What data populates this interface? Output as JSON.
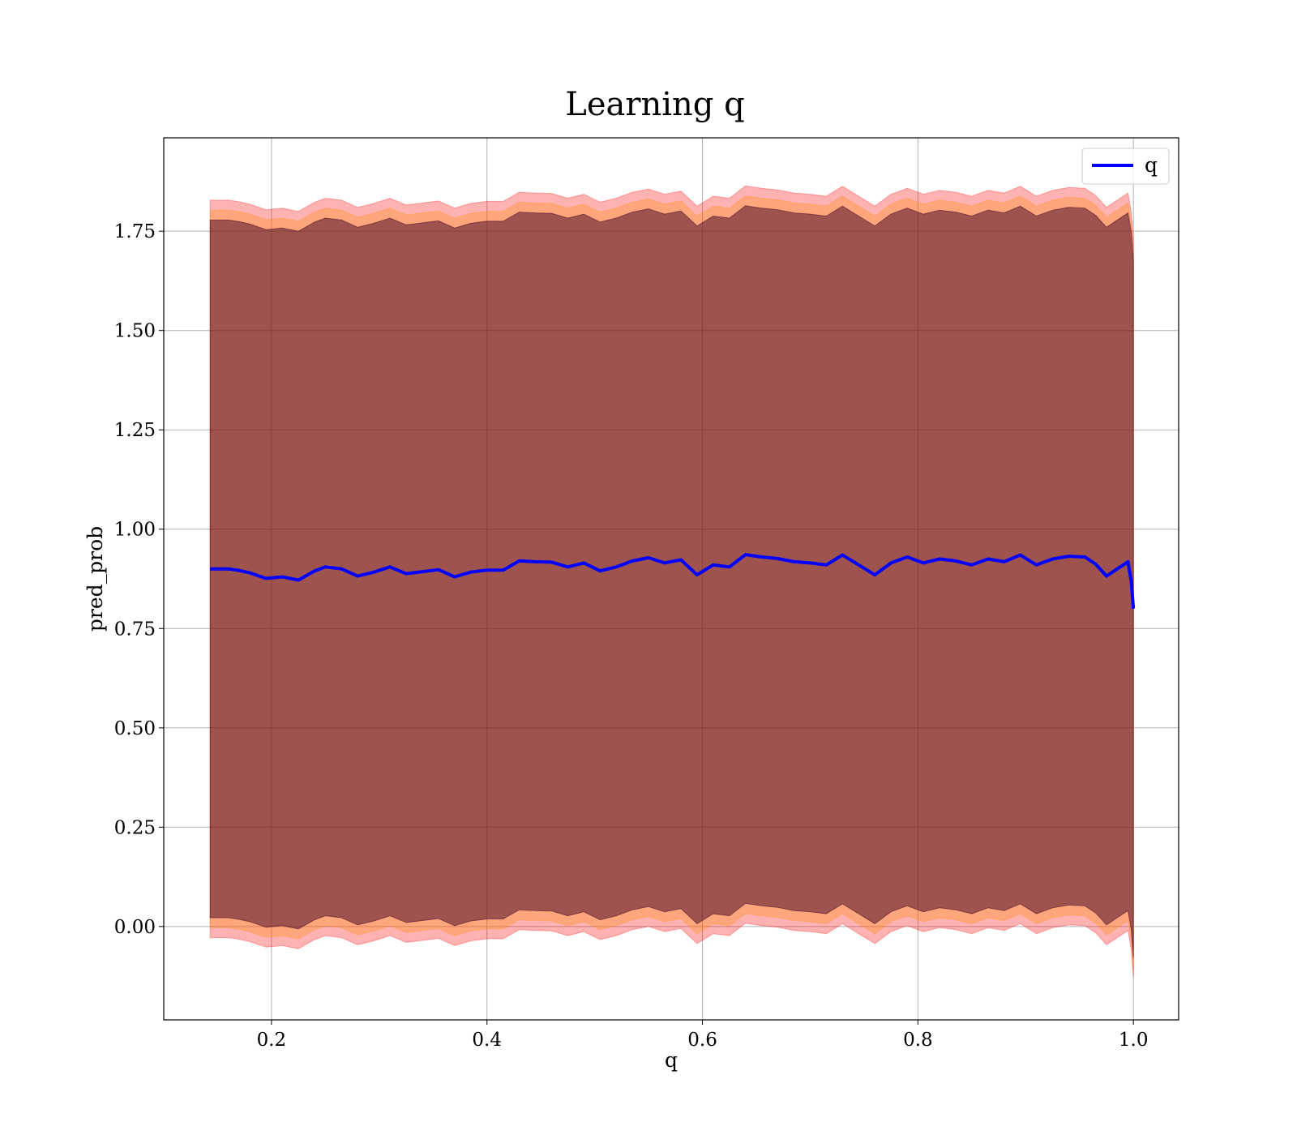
{
  "chart_data": {
    "type": "line",
    "title": "Learning q",
    "xlabel": "q",
    "ylabel": "pred_prob",
    "xlim": [
      0.1,
      1.042
    ],
    "ylim": [
      -0.235,
      1.985
    ],
    "x_ticks": [
      0.2,
      0.4,
      0.6,
      0.8,
      1.0
    ],
    "x_tick_labels": [
      "0.2",
      "0.4",
      "0.6",
      "0.8",
      "1.0"
    ],
    "y_ticks": [
      0.0,
      0.25,
      0.5,
      0.75,
      1.0,
      1.25,
      1.5,
      1.75
    ],
    "y_tick_labels": [
      "0.00",
      "0.25",
      "0.50",
      "0.75",
      "1.00",
      "1.25",
      "1.50",
      "1.75"
    ],
    "grid": true,
    "legend_position": "top-right",
    "series": [
      {
        "name": "q",
        "color": "#0000ff",
        "x": [
          0.143,
          0.16,
          0.17,
          0.18,
          0.195,
          0.21,
          0.225,
          0.24,
          0.25,
          0.265,
          0.28,
          0.295,
          0.31,
          0.325,
          0.34,
          0.355,
          0.37,
          0.385,
          0.4,
          0.415,
          0.43,
          0.445,
          0.46,
          0.475,
          0.49,
          0.505,
          0.52,
          0.535,
          0.55,
          0.565,
          0.58,
          0.595,
          0.61,
          0.625,
          0.64,
          0.655,
          0.67,
          0.685,
          0.7,
          0.715,
          0.73,
          0.745,
          0.76,
          0.775,
          0.79,
          0.805,
          0.82,
          0.835,
          0.85,
          0.865,
          0.88,
          0.895,
          0.91,
          0.925,
          0.94,
          0.955,
          0.965,
          0.975,
          0.985,
          0.995,
          0.998,
          1.0
        ],
        "y": [
          0.9,
          0.9,
          0.896,
          0.89,
          0.876,
          0.88,
          0.872,
          0.895,
          0.905,
          0.9,
          0.882,
          0.892,
          0.905,
          0.888,
          0.893,
          0.898,
          0.88,
          0.892,
          0.897,
          0.897,
          0.92,
          0.918,
          0.917,
          0.905,
          0.915,
          0.895,
          0.905,
          0.92,
          0.928,
          0.915,
          0.923,
          0.885,
          0.91,
          0.905,
          0.936,
          0.93,
          0.926,
          0.918,
          0.915,
          0.91,
          0.935,
          0.91,
          0.885,
          0.915,
          0.93,
          0.915,
          0.925,
          0.92,
          0.91,
          0.925,
          0.918,
          0.935,
          0.91,
          0.925,
          0.932,
          0.93,
          0.912,
          0.882,
          0.9,
          0.918,
          0.87,
          0.8
        ]
      }
    ],
    "bands": [
      {
        "color": "#ff0000",
        "opacity": 0.3,
        "upper": [
          1.828,
          1.828,
          1.824,
          1.818,
          1.804,
          1.808,
          1.8,
          1.823,
          1.833,
          1.828,
          1.81,
          1.82,
          1.833,
          1.816,
          1.821,
          1.826,
          1.808,
          1.82,
          1.825,
          1.825,
          1.848,
          1.846,
          1.845,
          1.833,
          1.843,
          1.823,
          1.833,
          1.848,
          1.856,
          1.843,
          1.851,
          1.813,
          1.838,
          1.833,
          1.864,
          1.858,
          1.854,
          1.846,
          1.843,
          1.838,
          1.863,
          1.838,
          1.813,
          1.843,
          1.858,
          1.843,
          1.853,
          1.848,
          1.838,
          1.853,
          1.846,
          1.863,
          1.838,
          1.853,
          1.86,
          1.858,
          1.84,
          1.81,
          1.828,
          1.846,
          1.798,
          1.728
        ],
        "lower": [
          -0.028,
          -0.028,
          -0.032,
          -0.038,
          -0.052,
          -0.048,
          -0.056,
          -0.033,
          -0.023,
          -0.028,
          -0.046,
          -0.036,
          -0.023,
          -0.04,
          -0.035,
          -0.03,
          -0.048,
          -0.036,
          -0.031,
          -0.031,
          -0.008,
          -0.01,
          -0.011,
          -0.023,
          -0.013,
          -0.033,
          -0.023,
          -0.008,
          0.0,
          -0.013,
          -0.005,
          -0.043,
          -0.018,
          -0.023,
          0.008,
          0.002,
          -0.002,
          -0.01,
          -0.013,
          -0.018,
          0.007,
          -0.018,
          -0.043,
          -0.013,
          0.002,
          -0.013,
          -0.003,
          -0.008,
          -0.018,
          -0.003,
          -0.01,
          0.007,
          -0.018,
          -0.003,
          0.004,
          0.002,
          -0.016,
          -0.046,
          -0.028,
          -0.01,
          -0.058,
          -0.128
        ]
      },
      {
        "color": "#ff8c00",
        "opacity": 0.3,
        "upper": [
          1.803,
          1.803,
          1.799,
          1.793,
          1.779,
          1.783,
          1.775,
          1.798,
          1.808,
          1.803,
          1.785,
          1.795,
          1.808,
          1.791,
          1.796,
          1.801,
          1.783,
          1.795,
          1.8,
          1.8,
          1.823,
          1.821,
          1.82,
          1.808,
          1.818,
          1.798,
          1.808,
          1.823,
          1.831,
          1.818,
          1.826,
          1.788,
          1.813,
          1.808,
          1.839,
          1.833,
          1.829,
          1.821,
          1.818,
          1.813,
          1.838,
          1.813,
          1.788,
          1.818,
          1.833,
          1.818,
          1.828,
          1.823,
          1.813,
          1.828,
          1.821,
          1.838,
          1.813,
          1.828,
          1.835,
          1.833,
          1.815,
          1.785,
          1.803,
          1.821,
          1.773,
          1.703
        ],
        "lower": [
          -0.003,
          -0.003,
          -0.007,
          -0.013,
          -0.027,
          -0.023,
          -0.031,
          -0.008,
          0.002,
          -0.003,
          -0.021,
          -0.011,
          0.002,
          -0.015,
          -0.01,
          -0.005,
          -0.023,
          -0.011,
          -0.006,
          -0.006,
          0.017,
          0.015,
          0.014,
          0.002,
          0.012,
          -0.008,
          0.002,
          0.017,
          0.025,
          0.012,
          0.02,
          -0.018,
          0.007,
          0.002,
          0.033,
          0.027,
          0.023,
          0.015,
          0.012,
          0.007,
          0.032,
          0.007,
          -0.018,
          0.012,
          0.027,
          0.012,
          0.022,
          0.017,
          0.007,
          0.022,
          0.015,
          0.032,
          0.007,
          0.022,
          0.029,
          0.027,
          0.009,
          -0.021,
          -0.003,
          0.015,
          -0.033,
          -0.103
        ]
      },
      {
        "color": "#400020",
        "opacity": 0.5,
        "upper": [
          1.778,
          1.778,
          1.774,
          1.768,
          1.754,
          1.758,
          1.75,
          1.773,
          1.783,
          1.778,
          1.76,
          1.77,
          1.783,
          1.766,
          1.771,
          1.776,
          1.758,
          1.77,
          1.775,
          1.775,
          1.798,
          1.796,
          1.795,
          1.783,
          1.793,
          1.773,
          1.783,
          1.798,
          1.806,
          1.793,
          1.801,
          1.763,
          1.788,
          1.783,
          1.814,
          1.808,
          1.804,
          1.796,
          1.793,
          1.788,
          1.813,
          1.788,
          1.763,
          1.793,
          1.808,
          1.793,
          1.803,
          1.798,
          1.788,
          1.803,
          1.796,
          1.813,
          1.788,
          1.803,
          1.81,
          1.808,
          1.79,
          1.76,
          1.778,
          1.796,
          1.748,
          1.678
        ],
        "lower": [
          0.022,
          0.022,
          0.018,
          0.012,
          -0.002,
          0.002,
          -0.006,
          0.017,
          0.027,
          0.022,
          0.004,
          0.014,
          0.027,
          0.01,
          0.015,
          0.02,
          0.002,
          0.014,
          0.019,
          0.019,
          0.042,
          0.04,
          0.039,
          0.027,
          0.037,
          0.017,
          0.027,
          0.042,
          0.05,
          0.037,
          0.045,
          0.007,
          0.032,
          0.027,
          0.058,
          0.052,
          0.048,
          0.04,
          0.037,
          0.032,
          0.057,
          0.032,
          0.007,
          0.037,
          0.052,
          0.037,
          0.047,
          0.042,
          0.032,
          0.047,
          0.04,
          0.057,
          0.032,
          0.047,
          0.054,
          0.052,
          0.034,
          0.004,
          0.022,
          0.04,
          -0.008,
          -0.078
        ]
      }
    ]
  }
}
